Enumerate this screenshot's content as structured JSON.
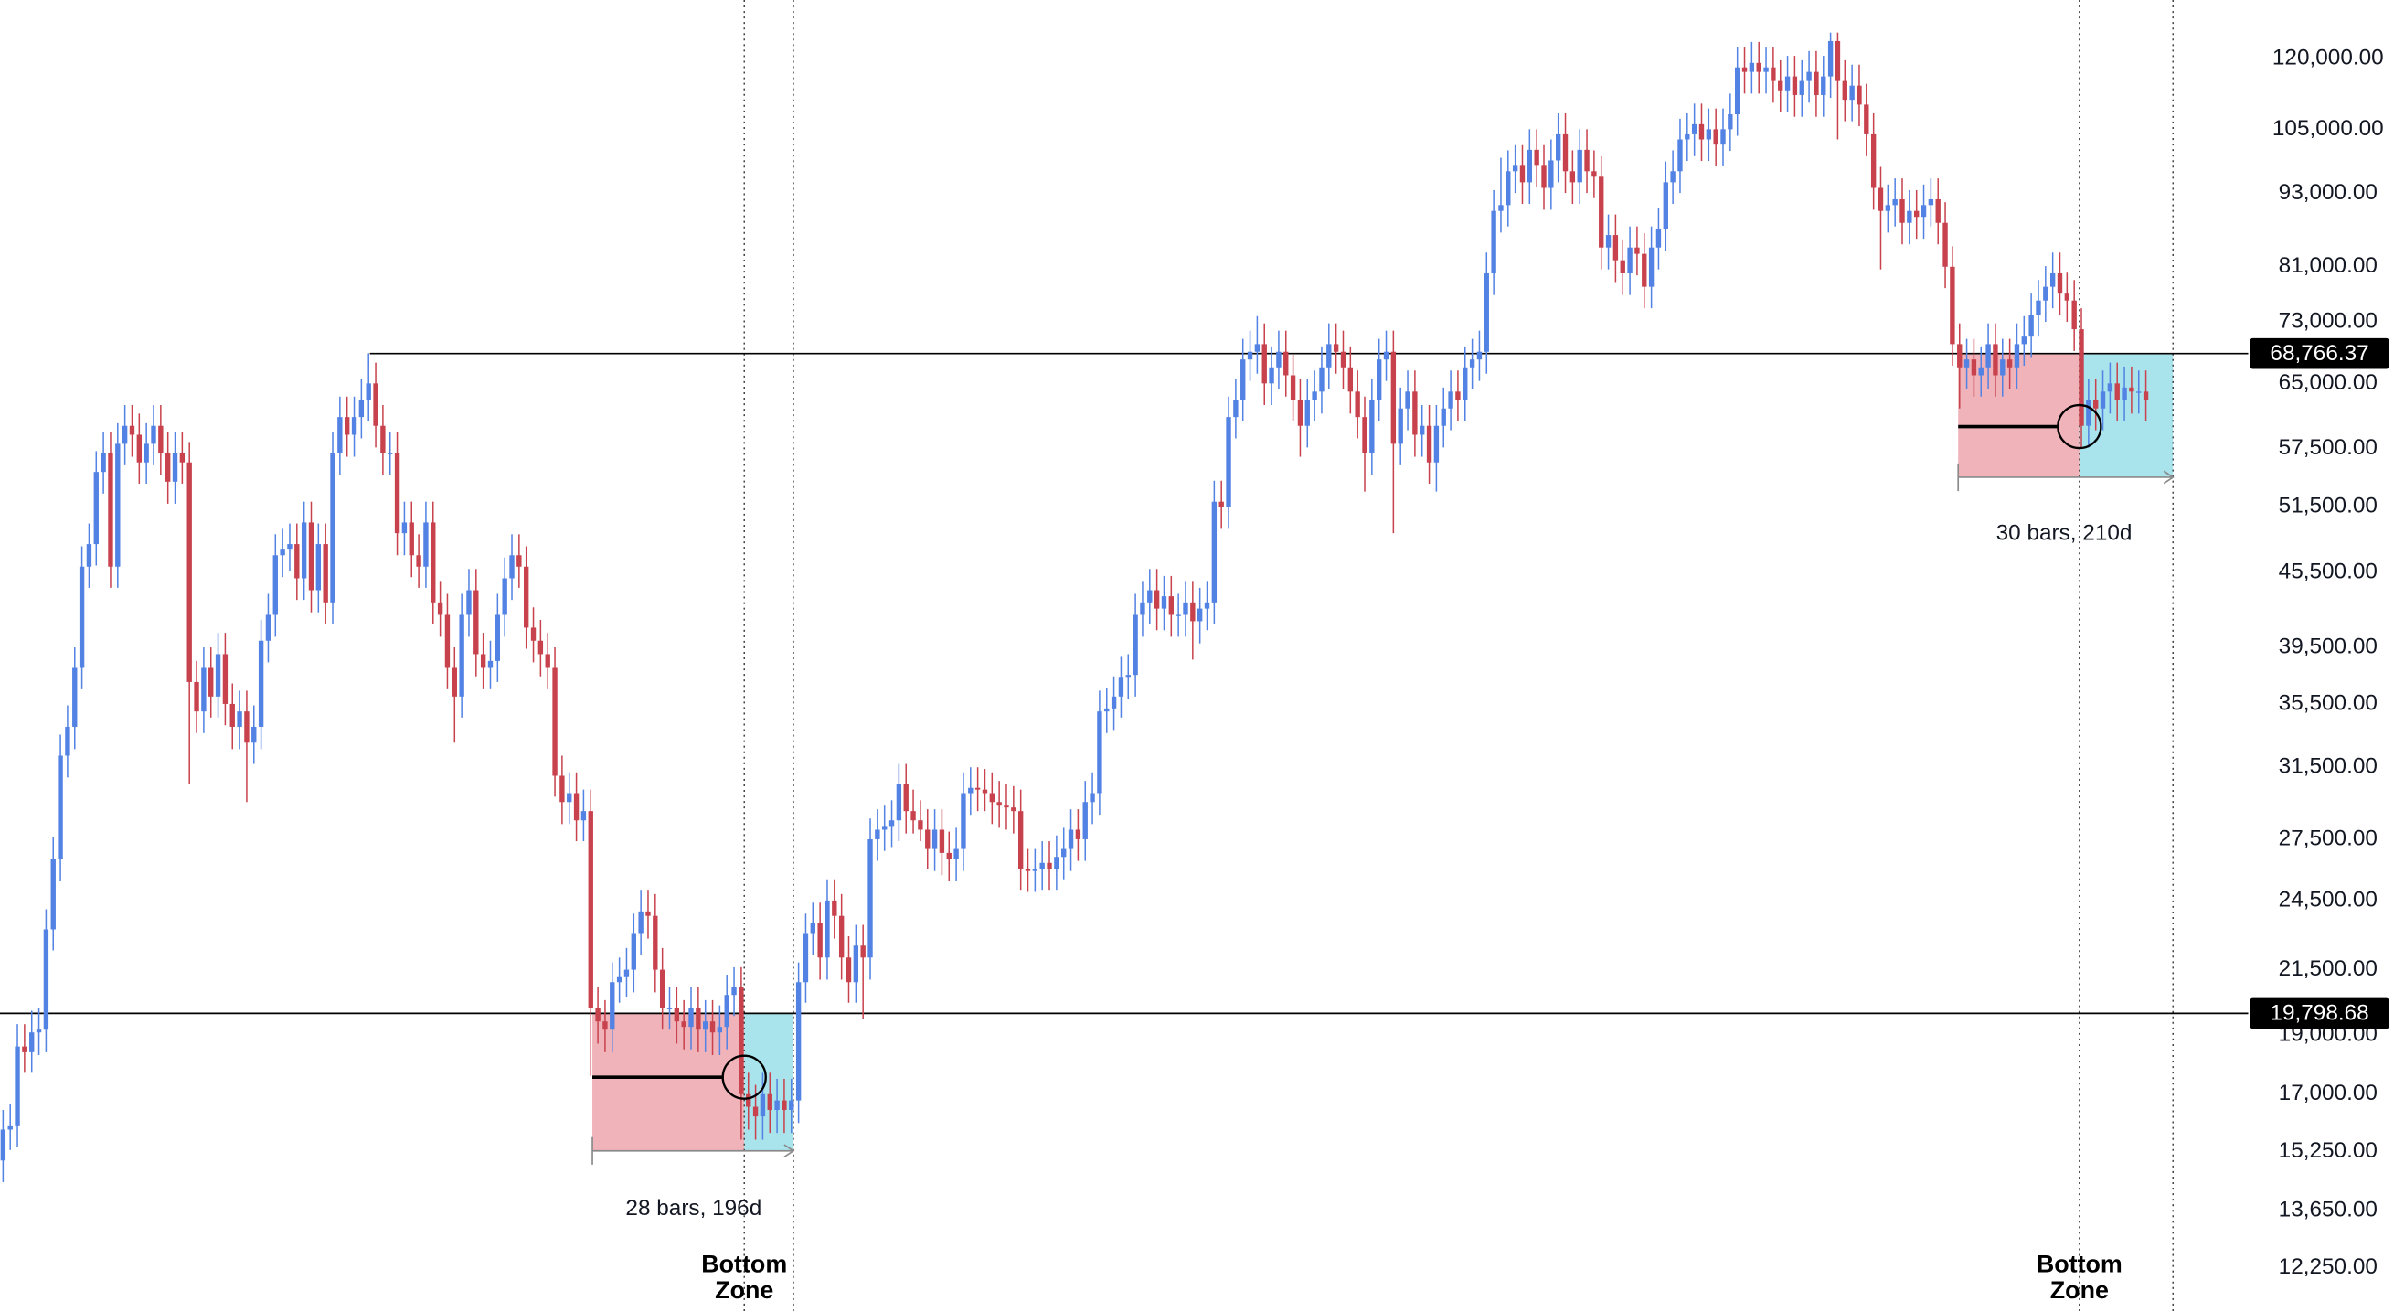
{
  "chart_data": {
    "type": "candlestick",
    "log_scale": true,
    "grid": false,
    "up_color": "#5282e3",
    "down_color": "#c8424d",
    "ylim": [
      11270,
      134000
    ],
    "yticks": [
      {
        "value": 120000,
        "label": "120,000.00"
      },
      {
        "value": 105000,
        "label": "105,000.00"
      },
      {
        "value": 93000,
        "label": "93,000.00"
      },
      {
        "value": 81000,
        "label": "81,000.00"
      },
      {
        "value": 73000,
        "label": "73,000.00"
      },
      {
        "value": 65000,
        "label": "65,000.00"
      },
      {
        "value": 57500,
        "label": "57,500.00"
      },
      {
        "value": 51500,
        "label": "51,500.00"
      },
      {
        "value": 45500,
        "label": "45,500.00"
      },
      {
        "value": 39500,
        "label": "39,500.00"
      },
      {
        "value": 35500,
        "label": "35,500.00"
      },
      {
        "value": 31500,
        "label": "31,500.00"
      },
      {
        "value": 27500,
        "label": "27,500.00"
      },
      {
        "value": 24500,
        "label": "24,500.00"
      },
      {
        "value": 21500,
        "label": "21,500.00"
      },
      {
        "value": 19000,
        "label": "19,000.00"
      },
      {
        "value": 17000,
        "label": "17,000.00"
      },
      {
        "value": 15250,
        "label": "15,250.00"
      },
      {
        "value": 13650,
        "label": "13,650.00"
      },
      {
        "value": 12250,
        "label": "12,250.00"
      }
    ],
    "hlines": [
      {
        "value": 68766.37,
        "label": "68,766.37"
      },
      {
        "value": 19798.68,
        "label": "19,798.68"
      }
    ],
    "annotations": [
      {
        "measure_label": "28 bars, 196d",
        "zone_label": "Bottom Zone"
      },
      {
        "measure_label": "30 bars, 210d",
        "zone_label": "Bottom Zone"
      }
    ],
    "open": [
      15000,
      15900,
      16000,
      18600,
      18400,
      19100,
      19200,
      23200,
      26500,
      32200,
      34000,
      38000,
      46000,
      48000,
      55000,
      57000,
      46000,
      58000,
      60000,
      59000,
      56000,
      58000,
      60000,
      57000,
      54000,
      57000,
      56000,
      37000,
      35000,
      38000,
      36000,
      39000,
      35500,
      34000,
      35000,
      33000,
      34000,
      40000,
      42000,
      47000,
      47500,
      48000,
      45000,
      50000,
      44000,
      48000,
      43000,
      57000,
      61000,
      59000,
      61000,
      63000,
      65000,
      60000,
      57000,
      57000,
      49000,
      50000,
      47000,
      46000,
      50000,
      43000,
      42000,
      38000,
      36000,
      42000,
      44000,
      39000,
      38000,
      38500,
      42000,
      45000,
      47000,
      46000,
      41000,
      40000,
      39000,
      38000,
      31000,
      29500,
      30000,
      28500,
      29000,
      20000,
      19500,
      19200,
      21000,
      21200,
      21500,
      23000,
      24000,
      23800,
      21500,
      20000,
      20000,
      19500,
      19300,
      20000,
      19200,
      19500,
      19100,
      19300,
      20500,
      20800,
      17000,
      16600,
      16300,
      17000,
      16500,
      16800,
      16500,
      16800,
      21000,
      23000,
      23500,
      22000,
      24500,
      23800,
      22000,
      21000,
      22500,
      22000,
      27500,
      28000,
      28200,
      28500,
      30500,
      29000,
      28500,
      28000,
      27000,
      28000,
      26800,
      26500,
      27000,
      30000,
      30300,
      30200,
      30000,
      29500,
      29300,
      29200,
      29000,
      26000,
      25900,
      26000,
      26300,
      26000,
      26600,
      27000,
      28000,
      27500,
      29500,
      30000,
      35000,
      35200,
      36000,
      37300,
      37500,
      42000,
      43000,
      44000,
      42500,
      43500,
      42000,
      42000,
      43000,
      41500,
      42500,
      43000,
      52000,
      51500,
      61000,
      63000,
      68000,
      69000,
      70000,
      65000,
      67000,
      69000,
      66000,
      63000,
      60000,
      63000,
      64000,
      67000,
      70000,
      69000,
      67000,
      64000,
      61000,
      57000,
      63000,
      68000,
      69000,
      58000,
      62000,
      64000,
      59000,
      60000,
      56000,
      60000,
      62000,
      64000,
      63000,
      67000,
      68000,
      69000,
      80000,
      90000,
      91000,
      97000,
      98000,
      95000,
      101000,
      98000,
      94000,
      99000,
      104000,
      97000,
      95000,
      101000,
      97000,
      96000,
      84000,
      86000,
      82000,
      80000,
      84000,
      83000,
      78000,
      84000,
      87000,
      95000,
      97000,
      103000,
      104000,
      106000,
      103000,
      105000,
      102000,
      105000,
      108000,
      118000,
      117000,
      119000,
      117000,
      118000,
      115000,
      113000,
      116000,
      112000,
      115000,
      117000,
      112000,
      116000,
      124000,
      115000,
      111000,
      114000,
      110000,
      104000,
      94000,
      90000,
      91000,
      92000,
      88000,
      90000,
      89000,
      91000,
      92000,
      88000,
      81000,
      70000,
      67000,
      68000,
      66000,
      67000,
      70000,
      66000,
      68000,
      67000,
      70000,
      71000,
      74000,
      76000,
      78000,
      80000,
      77000,
      76000,
      72000,
      60000,
      63000,
      62000,
      64000,
      65000,
      63000,
      64500,
      64000,
      64000
    ],
    "high": [
      16500,
      16700,
      19400,
      19400,
      19900,
      20000,
      24100,
      27600,
      33500,
      35400,
      39500,
      47800,
      49900,
      57200,
      59300,
      59300,
      60300,
      62400,
      62400,
      61400,
      60300,
      62400,
      62400,
      59300,
      59300,
      59300,
      58200,
      38500,
      39500,
      39500,
      40600,
      40600,
      36900,
      36400,
      36400,
      35400,
      41600,
      43700,
      48900,
      49400,
      49900,
      49900,
      52000,
      52000,
      49900,
      49900,
      59300,
      63400,
      63400,
      63400,
      65500,
      68800,
      67600,
      62400,
      59300,
      59300,
      52000,
      52000,
      48900,
      52000,
      52000,
      44700,
      43700,
      39500,
      43700,
      45800,
      45800,
      40600,
      40000,
      43700,
      46800,
      48900,
      48900,
      47800,
      42600,
      41600,
      40600,
      39500,
      32200,
      31200,
      31200,
      30200,
      30200,
      20800,
      20300,
      21800,
      22000,
      22400,
      23900,
      25000,
      25000,
      24800,
      22400,
      20800,
      20800,
      20300,
      20800,
      20800,
      20300,
      20300,
      20100,
      21300,
      21600,
      21600,
      17700,
      17300,
      17700,
      17700,
      17500,
      17500,
      17500,
      21800,
      23900,
      24400,
      24400,
      25500,
      25500,
      24800,
      22900,
      23400,
      23400,
      28600,
      29100,
      29300,
      29600,
      31700,
      31700,
      30200,
      29600,
      29100,
      29100,
      29100,
      27900,
      28100,
      31200,
      31500,
      31500,
      31400,
      31200,
      30700,
      30500,
      30400,
      30200,
      27000,
      27000,
      27400,
      27400,
      27700,
      28100,
      29100,
      29100,
      30700,
      31200,
      36400,
      36600,
      37400,
      38800,
      39000,
      43700,
      44700,
      45800,
      45800,
      45200,
      45200,
      43700,
      44700,
      44700,
      44200,
      44700,
      54100,
      54100,
      63400,
      65500,
      70700,
      71800,
      73800,
      72800,
      69700,
      71800,
      71800,
      68600,
      65500,
      65500,
      66600,
      69700,
      72800,
      72800,
      71800,
      69700,
      66600,
      63400,
      65500,
      70700,
      71800,
      71800,
      64500,
      66600,
      66600,
      62400,
      62400,
      62400,
      64500,
      66600,
      66600,
      69700,
      70700,
      71800,
      83200,
      93600,
      99500,
      100900,
      101900,
      101900,
      105000,
      105000,
      101900,
      103000,
      108200,
      108200,
      100900,
      105000,
      105000,
      100900,
      99800,
      89400,
      89400,
      85300,
      87400,
      87400,
      86300,
      87400,
      90500,
      98800,
      100900,
      107100,
      108200,
      110200,
      110200,
      109200,
      109200,
      109200,
      112300,
      122700,
      122700,
      123800,
      123800,
      122700,
      122700,
      119600,
      120600,
      120600,
      119600,
      121700,
      121700,
      120600,
      126000,
      126000,
      119600,
      118600,
      118600,
      114400,
      108200,
      97800,
      94600,
      95700,
      95700,
      93600,
      93600,
      94600,
      95700,
      95700,
      91500,
      84200,
      72800,
      70700,
      70700,
      69700,
      72800,
      72800,
      70700,
      70700,
      72800,
      73800,
      77000,
      79000,
      81100,
      83200,
      83200,
      80100,
      79000,
      74900,
      65500,
      65500,
      66600,
      67600,
      67600,
      67100,
      67100,
      66600,
      66600
    ],
    "low": [
      14400,
      15300,
      15400,
      17700,
      17700,
      18300,
      18400,
      22300,
      25400,
      30900,
      32600,
      36500,
      44200,
      46100,
      52800,
      44200,
      44200,
      55700,
      56600,
      53800,
      53800,
      55700,
      54700,
      51800,
      51800,
      53800,
      30500,
      33600,
      33600,
      34600,
      34600,
      34100,
      32600,
      32600,
      29500,
      31700,
      32600,
      38400,
      40300,
      45100,
      45600,
      43200,
      43200,
      42200,
      42200,
      41300,
      41300,
      54700,
      56600,
      56600,
      58600,
      60500,
      57600,
      54700,
      54700,
      47000,
      47000,
      45100,
      44200,
      44200,
      41300,
      40300,
      36500,
      33000,
      34600,
      40300,
      37400,
      36500,
      36500,
      37000,
      40300,
      43200,
      44200,
      39400,
      38400,
      37400,
      36500,
      29800,
      28300,
      28300,
      27400,
      27400,
      17600,
      18700,
      18400,
      18400,
      20200,
      20400,
      20600,
      22100,
      22800,
      20600,
      19200,
      19200,
      18700,
      18500,
      18500,
      18400,
      18400,
      18300,
      18300,
      18500,
      19700,
      15600,
      15900,
      15600,
      15600,
      15800,
      15800,
      15800,
      15800,
      16100,
      20200,
      22100,
      21100,
      21100,
      22800,
      21100,
      20200,
      20200,
      19600,
      21100,
      26400,
      26900,
      27100,
      27400,
      27800,
      27800,
      27400,
      26000,
      25900,
      25700,
      25400,
      25400,
      25900,
      28800,
      29000,
      29000,
      28300,
      28100,
      28000,
      27800,
      25000,
      24900,
      24900,
      25000,
      25000,
      25000,
      25500,
      25900,
      26400,
      26400,
      28300,
      28800,
      33600,
      33800,
      34600,
      35800,
      36000,
      40300,
      41300,
      40800,
      40800,
      40300,
      40300,
      40300,
      38600,
      39800,
      40800,
      41300,
      49400,
      49400,
      58600,
      60500,
      65300,
      66200,
      62400,
      62400,
      64300,
      63400,
      60500,
      56600,
      57600,
      60500,
      61400,
      64300,
      66200,
      64300,
      61400,
      58600,
      53000,
      54700,
      60500,
      65300,
      49000,
      55700,
      59500,
      56600,
      56600,
      53800,
      53000,
      57600,
      59500,
      60500,
      60500,
      64300,
      65300,
      66200,
      76800,
      86400,
      87400,
      93100,
      91200,
      91200,
      94100,
      90200,
      90200,
      95000,
      93100,
      91200,
      91200,
      93100,
      92200,
      80600,
      80600,
      78700,
      76800,
      76800,
      79700,
      74900,
      74900,
      80600,
      83500,
      91200,
      93100,
      98900,
      99800,
      98900,
      98900,
      97900,
      97900,
      100800,
      103700,
      112300,
      112300,
      112300,
      112300,
      110400,
      108500,
      108500,
      107500,
      107500,
      110400,
      107500,
      107500,
      111400,
      103000,
      106600,
      106600,
      105600,
      99800,
      90200,
      80600,
      86400,
      87400,
      84500,
      84500,
      85400,
      85400,
      87400,
      84500,
      77800,
      67200,
      62000,
      64300,
      63400,
      63400,
      64300,
      63400,
      63400,
      64300,
      64300,
      67200,
      68200,
      71000,
      73000,
      74900,
      73900,
      73000,
      69100,
      57600,
      57600,
      59500,
      59500,
      61400,
      60500,
      60500,
      61400,
      61400,
      60500
    ],
    "close": [
      15900,
      16000,
      18600,
      18400,
      19100,
      19200,
      23200,
      26500,
      32200,
      34000,
      38000,
      46000,
      48000,
      55000,
      57000,
      46000,
      58000,
      60000,
      59000,
      56000,
      58000,
      60000,
      57000,
      54000,
      57000,
      56000,
      37000,
      35000,
      38000,
      36000,
      39000,
      35500,
      34000,
      35000,
      33000,
      34000,
      40000,
      42000,
      47000,
      47500,
      48000,
      45000,
      50000,
      44000,
      48000,
      43000,
      57000,
      61000,
      59000,
      61000,
      63000,
      65000,
      60000,
      57000,
      57000,
      49000,
      50000,
      47000,
      46000,
      50000,
      43000,
      42000,
      38000,
      36000,
      42000,
      44000,
      39000,
      38000,
      38500,
      42000,
      45000,
      47000,
      46000,
      41000,
      40000,
      39000,
      38000,
      31000,
      29500,
      30000,
      28500,
      29000,
      20000,
      19500,
      19200,
      21000,
      21200,
      21500,
      23000,
      24000,
      23800,
      21500,
      20000,
      20000,
      19500,
      19300,
      20000,
      19200,
      19500,
      19100,
      19300,
      20500,
      20800,
      17000,
      16600,
      16300,
      17000,
      16500,
      16800,
      16500,
      16800,
      21000,
      23000,
      23500,
      22000,
      24500,
      23800,
      22000,
      21000,
      22500,
      22000,
      27500,
      28000,
      28200,
      28500,
      30500,
      29000,
      28500,
      28000,
      27000,
      28000,
      26800,
      26500,
      27000,
      30000,
      30300,
      30200,
      30000,
      29500,
      29300,
      29200,
      29000,
      26000,
      25900,
      26000,
      26300,
      26000,
      26600,
      27000,
      28000,
      27500,
      29500,
      30000,
      35000,
      35200,
      36000,
      37300,
      37500,
      42000,
      43000,
      44000,
      42500,
      43500,
      42000,
      42000,
      43000,
      41500,
      42500,
      43000,
      52000,
      51500,
      61000,
      63000,
      68000,
      69000,
      70000,
      65000,
      67000,
      69000,
      66000,
      63000,
      60000,
      63000,
      64000,
      67000,
      70000,
      69000,
      67000,
      64000,
      61000,
      57000,
      63000,
      68000,
      69000,
      58000,
      62000,
      64000,
      59000,
      60000,
      56000,
      60000,
      62000,
      64000,
      63000,
      67000,
      68000,
      69000,
      80000,
      90000,
      91000,
      97000,
      98000,
      95000,
      101000,
      98000,
      94000,
      99000,
      104000,
      97000,
      95000,
      101000,
      97000,
      96000,
      84000,
      86000,
      82000,
      80000,
      84000,
      83000,
      78000,
      84000,
      87000,
      95000,
      97000,
      103000,
      104000,
      106000,
      103000,
      105000,
      102000,
      105000,
      108000,
      118000,
      117000,
      119000,
      117000,
      118000,
      115000,
      113000,
      116000,
      112000,
      115000,
      117000,
      112000,
      116000,
      124000,
      115000,
      111000,
      114000,
      110000,
      104000,
      94000,
      90000,
      91000,
      92000,
      88000,
      90000,
      89000,
      91000,
      92000,
      88000,
      81000,
      70000,
      67000,
      68000,
      66000,
      67000,
      70000,
      66000,
      68000,
      67000,
      70000,
      71000,
      74000,
      76000,
      78000,
      80000,
      77000,
      76000,
      72000,
      60000,
      63000,
      62000,
      64000,
      65000,
      63000,
      64500,
      64000,
      64000,
      63000
    ]
  }
}
